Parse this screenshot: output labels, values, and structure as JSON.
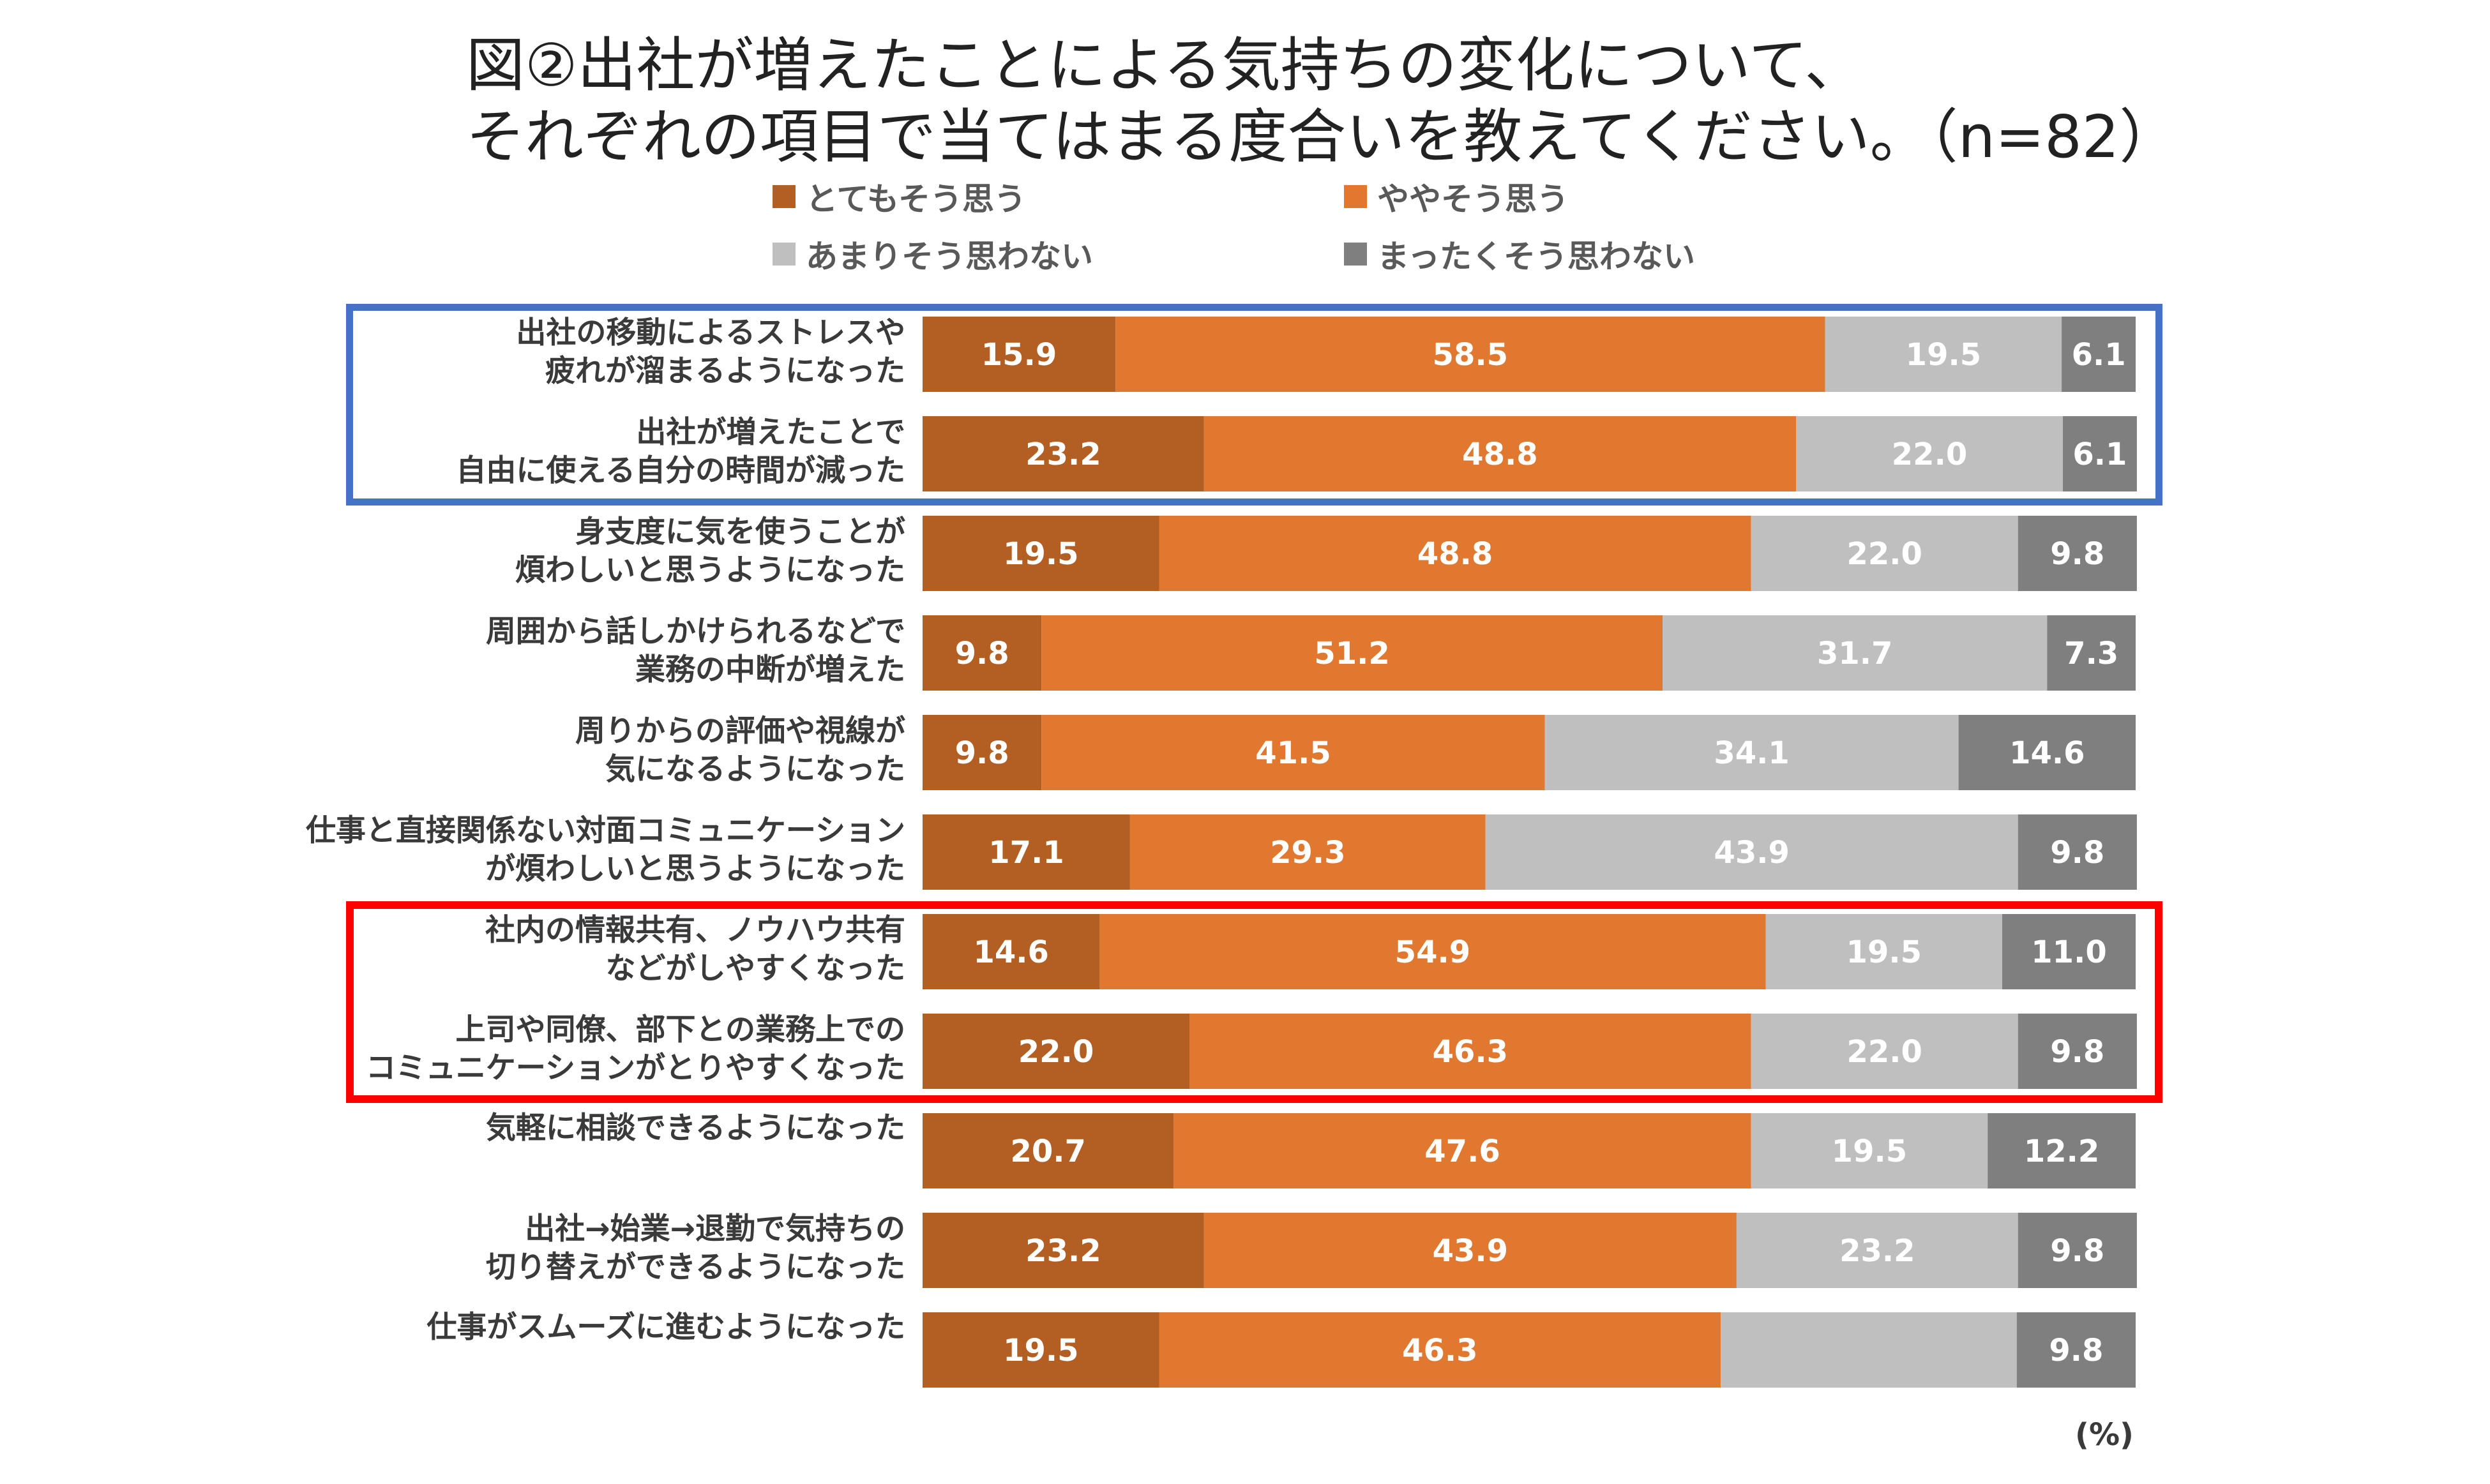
{
  "title_line1": "図②出社が増えたことによる気持ちの変化について、",
  "title_line2": "それぞれの項目で当てはまる度合いを教えてください。（n=82）",
  "unit_label": "(%)",
  "colors": {
    "very_agree": "#b35e22",
    "somewhat_agree": "#e07830",
    "not_much": "#bfbfbf",
    "not_at_all": "#7f7f7f",
    "highlight_blue": "#4472c4",
    "highlight_red": "#ff0000"
  },
  "chart_data": {
    "type": "bar",
    "orientation": "horizontal",
    "stacked": true,
    "normalized": true,
    "title": "図②出社が増えたことによる気持ちの変化について、それぞれの項目で当てはまる度合いを教えてください。（n=82）",
    "xlabel": "(%)",
    "xlim": [
      0,
      100
    ],
    "legend_position": "top",
    "categories": [
      [
        "出社の移動によるストレスや",
        "疲れが溜まるようになった"
      ],
      [
        "出社が増えたことで",
        "自由に使える自分の時間が減った"
      ],
      [
        "身支度に気を使うことが",
        "煩わしいと思うようになった"
      ],
      [
        "周囲から話しかけられるなどで",
        "業務の中断が増えた"
      ],
      [
        "周りからの評価や視線が",
        "気になるようになった"
      ],
      [
        "仕事と直接関係ない対面コミュニケーション",
        "が煩わしいと思うようになった"
      ],
      [
        "社内の情報共有、ノウハウ共有",
        "などがしやすくなった"
      ],
      [
        "上司や同僚、部下との業務上での",
        "コミュニケーションがとりやすくなった"
      ],
      [
        "気軽に相談できるようになった"
      ],
      [
        "出社→始業→退勤で気持ちの",
        "切り替えができるようになった"
      ],
      [
        "仕事がスムーズに進むようになった"
      ]
    ],
    "series": [
      {
        "name": "とてもそう思う",
        "values": [
          15.9,
          23.2,
          19.5,
          9.8,
          9.8,
          17.1,
          14.6,
          22.0,
          20.7,
          23.2,
          19.5
        ]
      },
      {
        "name": "ややそう思う",
        "values": [
          58.5,
          48.8,
          48.8,
          51.2,
          41.5,
          29.3,
          54.9,
          46.3,
          47.6,
          43.9,
          46.3
        ]
      },
      {
        "name": "あまりそう思わない",
        "values": [
          19.5,
          22.0,
          22.0,
          31.7,
          34.1,
          43.9,
          19.5,
          22.0,
          19.5,
          23.2,
          24.4
        ]
      },
      {
        "name": "まったくそう思わない",
        "values": [
          6.1,
          6.1,
          9.8,
          7.3,
          14.6,
          9.8,
          11.0,
          9.8,
          12.2,
          9.8,
          9.8
        ]
      }
    ],
    "data_label_hidden": [
      [],
      [],
      [],
      [],
      [],
      [],
      [],
      [],
      [],
      [],
      [
        "あまりそう思わない"
      ]
    ],
    "highlights": [
      {
        "color": "blue",
        "rows": [
          0,
          1
        ]
      },
      {
        "color": "red",
        "rows": [
          6,
          7
        ]
      }
    ]
  }
}
